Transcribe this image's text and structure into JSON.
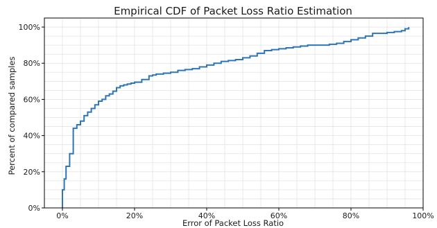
{
  "chart_data": {
    "type": "line",
    "style": "step",
    "title": "Empirical CDF of Packet Loss Ratio Estimation",
    "xlabel": "Error of Packet Loss Ratio",
    "ylabel": "Percent of compared samples",
    "xlim": [
      -0.05,
      1.0
    ],
    "ylim": [
      0,
      1.05
    ],
    "grid": true,
    "x_major_ticks": [
      0,
      0.2,
      0.4,
      0.6,
      0.8,
      1.0
    ],
    "x_minor_ticks": [
      0.05,
      0.1,
      0.15,
      0.25,
      0.3,
      0.35,
      0.45,
      0.5,
      0.55,
      0.65,
      0.7,
      0.75,
      0.85,
      0.9,
      0.95
    ],
    "y_major_ticks": [
      0,
      0.2,
      0.4,
      0.6,
      0.8,
      1.0
    ],
    "y_minor_ticks": [
      0.05,
      0.1,
      0.15,
      0.25,
      0.3,
      0.35,
      0.45,
      0.5,
      0.55,
      0.65,
      0.7,
      0.75,
      0.85,
      0.9,
      0.95
    ],
    "x_tick_labels": [
      "0%",
      "20%",
      "40%",
      "60%",
      "80%",
      "100%"
    ],
    "y_tick_labels": [
      "0%",
      "20%",
      "40%",
      "60%",
      "80%",
      "100%"
    ],
    "colors": {
      "line": "#2e75b6",
      "grid": "#e3e3e3",
      "axis": "#000000"
    },
    "series": [
      {
        "x": [
          0.0,
          0.0,
          0.005,
          0.01,
          0.02,
          0.03,
          0.04,
          0.05,
          0.06,
          0.07,
          0.08,
          0.09,
          0.1,
          0.11,
          0.12,
          0.13,
          0.14,
          0.15,
          0.16,
          0.17,
          0.18,
          0.19,
          0.2,
          0.22,
          0.24,
          0.25,
          0.26,
          0.28,
          0.3,
          0.32,
          0.34,
          0.36,
          0.38,
          0.4,
          0.42,
          0.44,
          0.46,
          0.48,
          0.5,
          0.52,
          0.54,
          0.56,
          0.58,
          0.6,
          0.62,
          0.64,
          0.66,
          0.68,
          0.7,
          0.72,
          0.74,
          0.76,
          0.78,
          0.8,
          0.82,
          0.84,
          0.86,
          0.88,
          0.9,
          0.92,
          0.94,
          0.95,
          0.96
        ],
        "values": [
          0.0,
          0.1,
          0.16,
          0.23,
          0.3,
          0.44,
          0.46,
          0.48,
          0.51,
          0.53,
          0.55,
          0.57,
          0.59,
          0.6,
          0.62,
          0.63,
          0.645,
          0.665,
          0.675,
          0.68,
          0.685,
          0.69,
          0.695,
          0.71,
          0.73,
          0.735,
          0.74,
          0.745,
          0.75,
          0.76,
          0.765,
          0.77,
          0.78,
          0.79,
          0.8,
          0.81,
          0.815,
          0.82,
          0.83,
          0.84,
          0.855,
          0.87,
          0.875,
          0.88,
          0.885,
          0.89,
          0.895,
          0.9,
          0.9,
          0.9,
          0.905,
          0.91,
          0.92,
          0.93,
          0.94,
          0.95,
          0.965,
          0.965,
          0.97,
          0.975,
          0.98,
          0.99,
          1.0
        ]
      }
    ]
  }
}
